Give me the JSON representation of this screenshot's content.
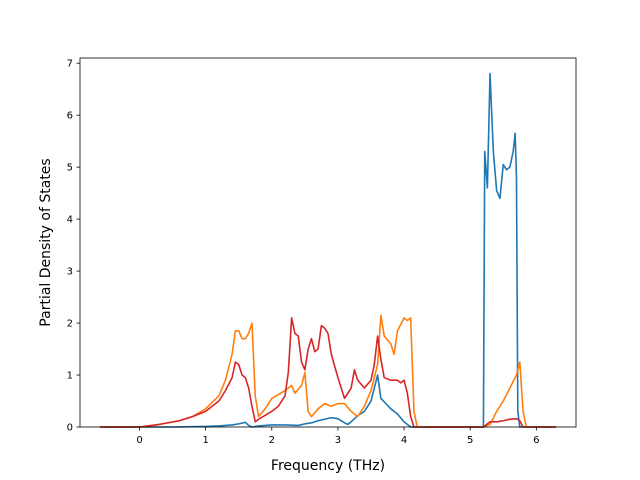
{
  "chart_data": {
    "type": "line",
    "title": "",
    "xlabel": "Frequency (THz)",
    "ylabel": "Partial Density of States",
    "xlim": [
      -0.9,
      6.6
    ],
    "ylim": [
      0,
      7.1
    ],
    "xticks": [
      "0",
      "1",
      "2",
      "3",
      "4",
      "5",
      "6"
    ],
    "yticks": [
      "0",
      "1",
      "2",
      "3",
      "4",
      "5",
      "6",
      "7"
    ],
    "grid": false,
    "legend": "none",
    "series": [
      {
        "color": "#1f77b4",
        "points": [
          [
            -0.6,
            0
          ],
          [
            0,
            0
          ],
          [
            0.5,
            0
          ],
          [
            1.0,
            0.01
          ],
          [
            1.2,
            0.02
          ],
          [
            1.4,
            0.04
          ],
          [
            1.5,
            0.06
          ],
          [
            1.6,
            0.09
          ],
          [
            1.65,
            0.03
          ],
          [
            1.7,
            0.0
          ],
          [
            1.8,
            0.02
          ],
          [
            2.0,
            0.04
          ],
          [
            2.2,
            0.04
          ],
          [
            2.4,
            0.03
          ],
          [
            2.5,
            0.06
          ],
          [
            2.6,
            0.08
          ],
          [
            2.7,
            0.12
          ],
          [
            2.9,
            0.18
          ],
          [
            3.0,
            0.16
          ],
          [
            3.1,
            0.08
          ],
          [
            3.15,
            0.05
          ],
          [
            3.2,
            0.1
          ],
          [
            3.3,
            0.22
          ],
          [
            3.4,
            0.3
          ],
          [
            3.5,
            0.5
          ],
          [
            3.6,
            1.0
          ],
          [
            3.65,
            0.55
          ],
          [
            3.8,
            0.35
          ],
          [
            3.9,
            0.25
          ],
          [
            4.0,
            0.1
          ],
          [
            4.1,
            0.0
          ],
          [
            5.0,
            0
          ],
          [
            5.2,
            0
          ],
          [
            5.22,
            5.3
          ],
          [
            5.26,
            4.6
          ],
          [
            5.3,
            6.8
          ],
          [
            5.35,
            5.3
          ],
          [
            5.4,
            4.55
          ],
          [
            5.45,
            4.4
          ],
          [
            5.5,
            5.05
          ],
          [
            5.55,
            4.95
          ],
          [
            5.6,
            5.0
          ],
          [
            5.65,
            5.3
          ],
          [
            5.68,
            5.65
          ],
          [
            5.7,
            4.8
          ],
          [
            5.72,
            0.3
          ],
          [
            5.75,
            0
          ],
          [
            6.3,
            0
          ]
        ]
      },
      {
        "color": "#ff7f0e",
        "points": [
          [
            -0.6,
            0
          ],
          [
            0,
            0
          ],
          [
            0.3,
            0.05
          ],
          [
            0.6,
            0.12
          ],
          [
            0.8,
            0.2
          ],
          [
            1.0,
            0.35
          ],
          [
            1.2,
            0.6
          ],
          [
            1.3,
            0.9
          ],
          [
            1.4,
            1.4
          ],
          [
            1.45,
            1.85
          ],
          [
            1.5,
            1.85
          ],
          [
            1.55,
            1.7
          ],
          [
            1.6,
            1.7
          ],
          [
            1.65,
            1.8
          ],
          [
            1.7,
            2.0
          ],
          [
            1.75,
            0.6
          ],
          [
            1.8,
            0.2
          ],
          [
            1.9,
            0.35
          ],
          [
            2.0,
            0.55
          ],
          [
            2.2,
            0.7
          ],
          [
            2.3,
            0.8
          ],
          [
            2.35,
            0.65
          ],
          [
            2.45,
            0.8
          ],
          [
            2.5,
            1.05
          ],
          [
            2.55,
            0.3
          ],
          [
            2.6,
            0.2
          ],
          [
            2.7,
            0.35
          ],
          [
            2.8,
            0.45
          ],
          [
            2.9,
            0.4
          ],
          [
            3.0,
            0.45
          ],
          [
            3.1,
            0.45
          ],
          [
            3.2,
            0.3
          ],
          [
            3.3,
            0.2
          ],
          [
            3.4,
            0.4
          ],
          [
            3.5,
            0.7
          ],
          [
            3.6,
            1.2
          ],
          [
            3.65,
            2.15
          ],
          [
            3.7,
            1.75
          ],
          [
            3.8,
            1.6
          ],
          [
            3.85,
            1.4
          ],
          [
            3.9,
            1.85
          ],
          [
            4.0,
            2.1
          ],
          [
            4.05,
            2.05
          ],
          [
            4.1,
            2.1
          ],
          [
            4.15,
            0.3
          ],
          [
            4.2,
            0
          ],
          [
            5.2,
            0
          ],
          [
            5.3,
            0.05
          ],
          [
            5.4,
            0.3
          ],
          [
            5.5,
            0.5
          ],
          [
            5.6,
            0.75
          ],
          [
            5.7,
            1.0
          ],
          [
            5.75,
            1.25
          ],
          [
            5.8,
            0.3
          ],
          [
            5.85,
            0
          ],
          [
            6.3,
            0
          ]
        ]
      },
      {
        "color": "#d62728",
        "points": [
          [
            -0.6,
            0
          ],
          [
            0,
            0
          ],
          [
            0.3,
            0.05
          ],
          [
            0.6,
            0.12
          ],
          [
            0.8,
            0.2
          ],
          [
            1.0,
            0.3
          ],
          [
            1.2,
            0.5
          ],
          [
            1.3,
            0.7
          ],
          [
            1.4,
            0.95
          ],
          [
            1.45,
            1.25
          ],
          [
            1.5,
            1.2
          ],
          [
            1.55,
            1.0
          ],
          [
            1.6,
            0.95
          ],
          [
            1.65,
            0.75
          ],
          [
            1.7,
            0.4
          ],
          [
            1.75,
            0.1
          ],
          [
            1.8,
            0.15
          ],
          [
            2.0,
            0.3
          ],
          [
            2.1,
            0.4
          ],
          [
            2.2,
            0.6
          ],
          [
            2.25,
            1.05
          ],
          [
            2.3,
            2.1
          ],
          [
            2.35,
            1.8
          ],
          [
            2.4,
            1.75
          ],
          [
            2.45,
            1.25
          ],
          [
            2.5,
            1.1
          ],
          [
            2.55,
            1.5
          ],
          [
            2.6,
            1.7
          ],
          [
            2.65,
            1.45
          ],
          [
            2.7,
            1.5
          ],
          [
            2.75,
            1.95
          ],
          [
            2.8,
            1.9
          ],
          [
            2.85,
            1.8
          ],
          [
            2.9,
            1.4
          ],
          [
            3.0,
            0.95
          ],
          [
            3.1,
            0.55
          ],
          [
            3.2,
            0.75
          ],
          [
            3.25,
            1.1
          ],
          [
            3.3,
            0.9
          ],
          [
            3.4,
            0.75
          ],
          [
            3.5,
            0.9
          ],
          [
            3.55,
            1.2
          ],
          [
            3.6,
            1.75
          ],
          [
            3.65,
            1.3
          ],
          [
            3.7,
            0.95
          ],
          [
            3.8,
            0.9
          ],
          [
            3.9,
            0.9
          ],
          [
            3.95,
            0.85
          ],
          [
            4.0,
            0.9
          ],
          [
            4.05,
            0.65
          ],
          [
            4.1,
            0.2
          ],
          [
            4.15,
            0
          ],
          [
            5.2,
            0
          ],
          [
            5.3,
            0.1
          ],
          [
            5.4,
            0.1
          ],
          [
            5.5,
            0.12
          ],
          [
            5.6,
            0.15
          ],
          [
            5.7,
            0.16
          ],
          [
            5.75,
            0.12
          ],
          [
            5.8,
            0.0
          ],
          [
            6.3,
            0
          ]
        ]
      }
    ]
  }
}
